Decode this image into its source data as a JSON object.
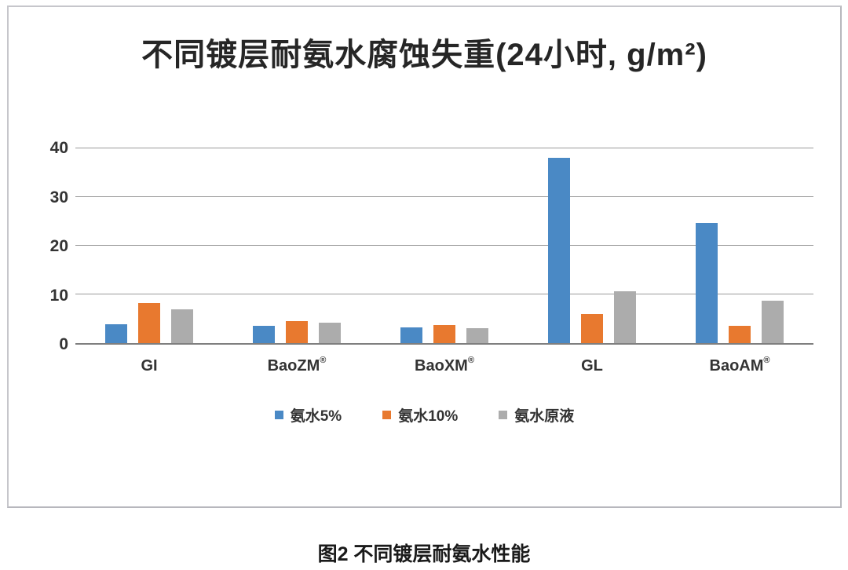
{
  "chart_data": {
    "type": "bar",
    "title": "不同镀层耐氨水腐蚀失重(24小时, g/m²)",
    "categories": [
      "GI",
      "BaoZM®",
      "BaoXM®",
      "GL",
      "BaoAM®"
    ],
    "series": [
      {
        "name": "氨水5%",
        "color": "#4a89c5",
        "values": [
          3.8,
          3.6,
          3.3,
          38.0,
          24.6
        ]
      },
      {
        "name": "氨水10%",
        "color": "#e8792f",
        "values": [
          8.2,
          4.5,
          3.7,
          6.0,
          3.5
        ]
      },
      {
        "name": "氨水原液",
        "color": "#acacac",
        "values": [
          6.9,
          4.2,
          3.1,
          10.6,
          8.7
        ]
      }
    ],
    "xlabel": "",
    "ylabel": "",
    "ylim": [
      0,
      40
    ],
    "yticks": [
      0,
      10,
      20,
      30,
      40
    ],
    "grid": true,
    "legend_position": "bottom",
    "gridline_color": "#9b9b9b",
    "baseline_color": "#7f7f7f"
  },
  "caption": "图2 不同镀层耐氨水性能"
}
